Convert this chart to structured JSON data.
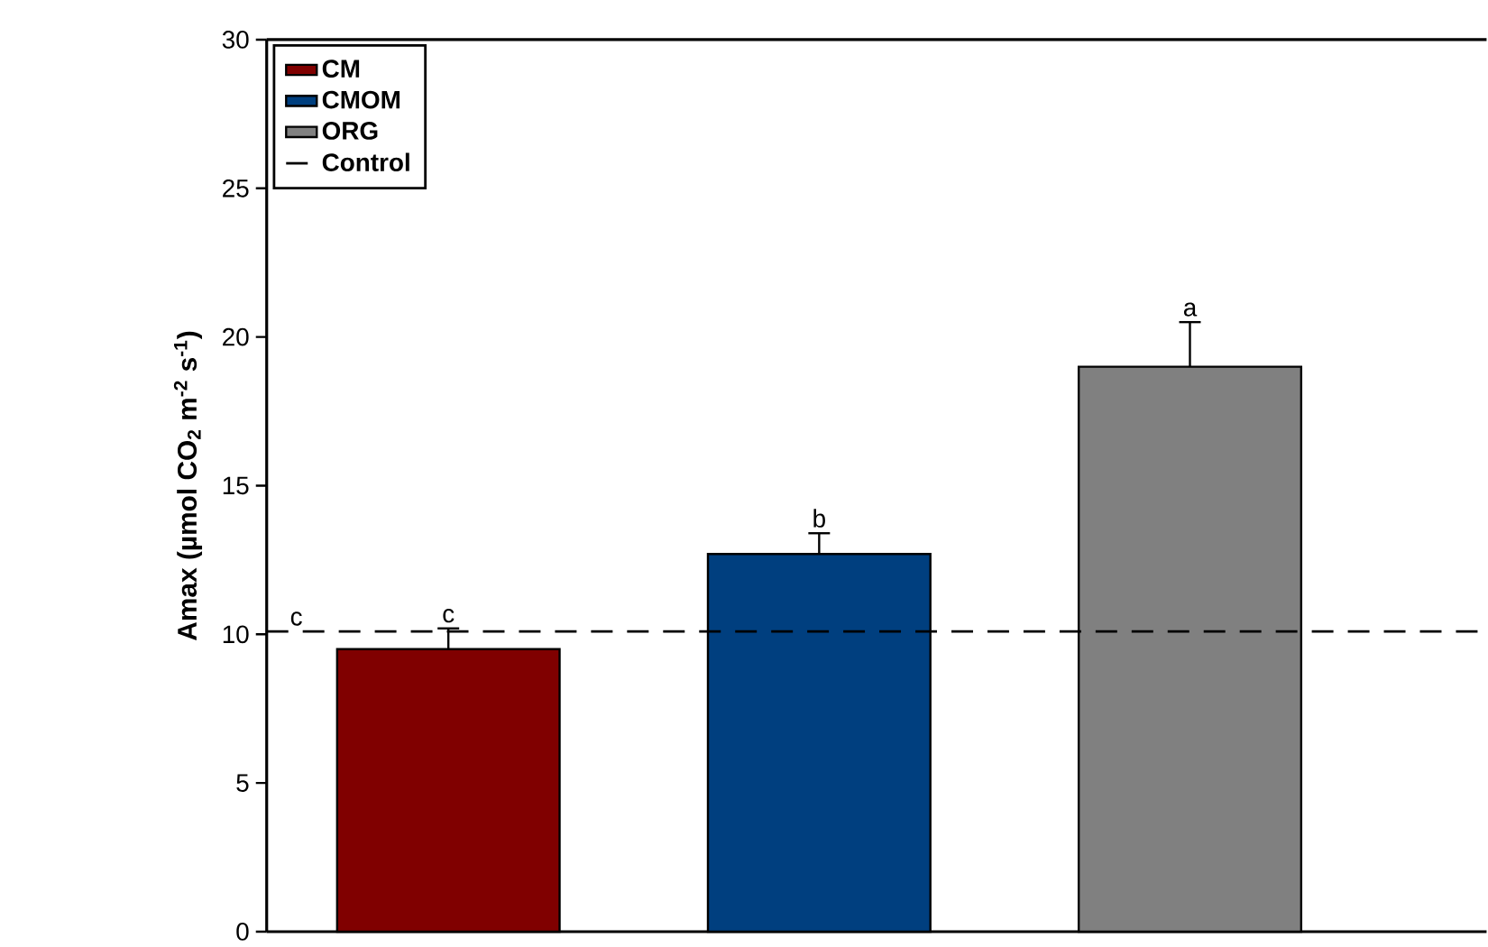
{
  "chart_data": {
    "type": "bar",
    "ylabel": "**Amax (µmol CO$_{2}$ m$^{-2}$ s$^{-1}$)**",
    "categories": [
      null,
      null,
      null
    ],
    "series": [
      {
        "name": "CM",
        "color": "#800000",
        "values": [
          9.5,
          null,
          null
        ],
        "errors": [
          0.7,
          null,
          null
        ]
      },
      {
        "name": "CMOM",
        "color": "#003f7f",
        "values": [
          null,
          12.7,
          null
        ],
        "errors": [
          null,
          0.7,
          null
        ]
      },
      {
        "name": "ORG",
        "color": "#808080",
        "values": [
          null,
          null,
          19.0
        ],
        "errors": [
          null,
          null,
          1.5
        ]
      }
    ],
    "ref_lines": [
      {
        "axis": "y",
        "value": 10.1,
        "label": "Control",
        "line_style": "dashed",
        "color": "#000000"
      }
    ],
    "annotations": [
      {
        "text": "c",
        "y": 10.1
      },
      {
        "text": "c",
        "y": 10.2
      },
      {
        "text": "b",
        "y": 13.4
      },
      {
        "text": "a",
        "y": 20.5
      }
    ],
    "ylim": [
      0,
      30
    ],
    "yticks": [
      0,
      5,
      10,
      15,
      20,
      25,
      30
    ],
    "legend": "top left",
    "grid": false,
    "tick_labels": "y"
  }
}
